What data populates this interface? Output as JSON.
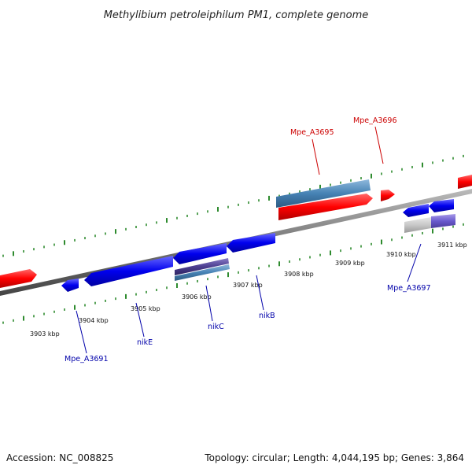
{
  "title": "Methylibium petroleiphilum PM1, complete genome",
  "footer": {
    "accession": "Accession: NC_008825",
    "stats": "Topology: circular; Length: 4,044,195 bp; Genes: 3,864"
  },
  "colors": {
    "forward_gene": "#ff0000",
    "reverse_gene": "#0000ee",
    "cds_dark": "#4b3d8f",
    "cds_light": "#4682b4",
    "ticks": "#2e8b2e",
    "backbone": "#777777",
    "forward_label": "#cc0000",
    "reverse_label": "#0000aa"
  },
  "scale_labels": [
    "3903 kbp",
    "3904 kbp",
    "3905 kbp",
    "3906 kbp",
    "3907 kbp",
    "3908 kbp",
    "3909 kbp",
    "3910 kbp",
    "3911 kbp"
  ],
  "gene_labels": {
    "forward": [
      "Mpe_A3695",
      "Mpe_A3696"
    ],
    "reverse": [
      "Mpe_A3691",
      "nikE",
      "nikC",
      "nikB",
      "Mpe_A3697"
    ]
  }
}
